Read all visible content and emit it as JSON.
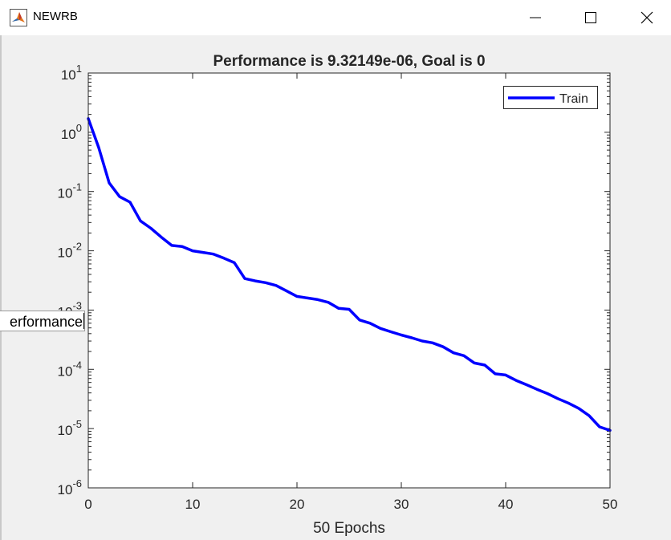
{
  "window": {
    "title": "NEWRB",
    "app_icon": "matlab-icon",
    "controls": [
      "minimize-icon",
      "maximize-icon",
      "close-icon"
    ]
  },
  "ylabel_editor": {
    "value": "Performance",
    "visible_text": "erformance"
  },
  "chart_data": {
    "type": "line",
    "title": "Performance is 9.32149e-06, Goal is 0",
    "xlabel": "50 Epochs",
    "ylabel": "Performance",
    "xlim": [
      0,
      50
    ],
    "ylim": [
      1e-06,
      10
    ],
    "yscale": "log",
    "x_ticks": [
      0,
      10,
      20,
      30,
      40,
      50
    ],
    "y_tick_exponents": [
      1,
      0,
      -1,
      -2,
      -3,
      -4,
      -5,
      -6
    ],
    "grid": false,
    "legend": {
      "position": "top-right",
      "entries": [
        "Train"
      ]
    },
    "series": [
      {
        "name": "Train",
        "color": "#0000ff",
        "x": [
          0,
          1,
          2,
          3,
          4,
          5,
          6,
          7,
          8,
          9,
          10,
          11,
          12,
          13,
          14,
          15,
          16,
          17,
          18,
          19,
          20,
          21,
          22,
          23,
          24,
          25,
          26,
          27,
          28,
          29,
          30,
          31,
          32,
          33,
          34,
          35,
          36,
          37,
          38,
          39,
          40,
          41,
          42,
          43,
          44,
          45,
          46,
          47,
          48,
          49,
          50
        ],
        "y": [
          1.7,
          0.55,
          0.14,
          0.082,
          0.066,
          0.032,
          0.024,
          0.017,
          0.0123,
          0.0118,
          0.01,
          0.0094,
          0.0088,
          0.0075,
          0.0063,
          0.0034,
          0.0031,
          0.0029,
          0.0026,
          0.0021,
          0.0017,
          0.0016,
          0.0015,
          0.00135,
          0.00107,
          0.00103,
          0.00068,
          0.0006,
          0.00049,
          0.00043,
          0.00038,
          0.00034,
          0.0003,
          0.00028,
          0.00024,
          0.00019,
          0.00017,
          0.000128,
          0.000118,
          8.4e-05,
          8e-05,
          6.5e-05,
          5.5e-05,
          4.6e-05,
          3.9e-05,
          3.2e-05,
          2.7e-05,
          2.2e-05,
          1.65e-05,
          1.07e-05,
          9.32e-06
        ]
      }
    ]
  }
}
